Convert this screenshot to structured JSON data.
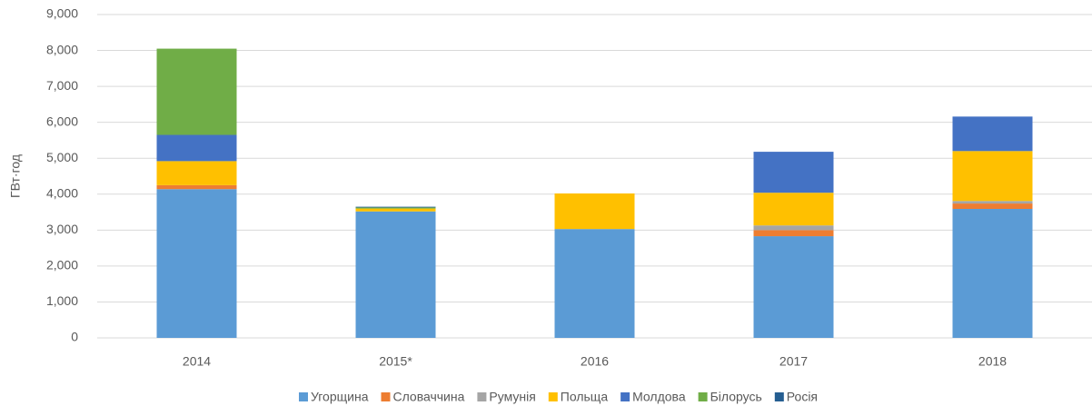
{
  "chart_data": {
    "type": "stacked_bar",
    "y_label": "ГВт·год",
    "categories": [
      "2014",
      "2015*",
      "2016",
      "2017",
      "2018"
    ],
    "series": [
      {
        "name": "Угорщина",
        "color": "#5b9bd5",
        "values": [
          4140,
          3520,
          3030,
          2830,
          3590
        ]
      },
      {
        "name": "Словаччина",
        "color": "#ed7d31",
        "values": [
          110,
          0,
          0,
          170,
          150
        ]
      },
      {
        "name": "Румунія",
        "color": "#a5a5a5",
        "values": [
          0,
          0,
          0,
          130,
          70
        ]
      },
      {
        "name": "Польща",
        "color": "#ffc000",
        "values": [
          670,
          80,
          990,
          910,
          1390
        ]
      },
      {
        "name": "Молдова",
        "color": "#4472c4",
        "values": [
          730,
          0,
          0,
          1140,
          960
        ]
      },
      {
        "name": "Білорусь",
        "color": "#70ad47",
        "values": [
          2400,
          30,
          0,
          0,
          0
        ]
      },
      {
        "name": "Росія",
        "color": "#255e91",
        "values": [
          0,
          20,
          0,
          0,
          0
        ]
      }
    ],
    "ylim": [
      0,
      9000
    ],
    "yticks": [
      0,
      {
        "value": 1000,
        "label": "1,000"
      },
      {
        "value": 2000,
        "label": "2,000"
      },
      {
        "value": 3000,
        "label": "3,000"
      },
      {
        "value": 4000,
        "label": "4,000"
      },
      {
        "value": 5000,
        "label": "5,000"
      },
      {
        "value": 6000,
        "label": "6,000"
      },
      {
        "value": 7000,
        "label": "7,000"
      },
      {
        "value": 8000,
        "label": "8,000"
      },
      {
        "value": 9000,
        "label": "9,000"
      }
    ],
    "grid": true,
    "legend": "bottom"
  }
}
